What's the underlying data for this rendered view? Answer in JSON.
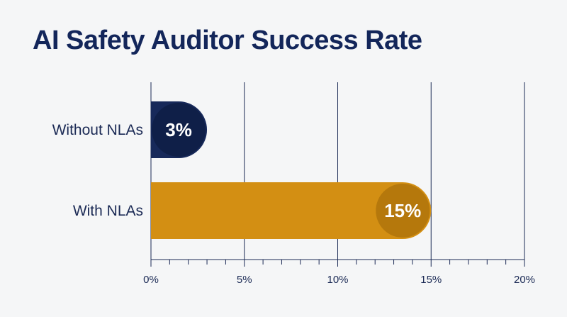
{
  "title": "AI Safety Auditor Success Rate",
  "colors": {
    "background": "#f5f6f7",
    "grid": "#1b2a55",
    "title": "#13265a",
    "without_bar": "#17295a",
    "without_badge": "#0f1f48",
    "with_bar": "#d38f13",
    "with_badge": "#b5780c"
  },
  "chart_data": {
    "type": "bar",
    "orientation": "horizontal",
    "title": "AI Safety Auditor Success Rate",
    "categories": [
      "Without NLAs",
      "With NLAs"
    ],
    "values": [
      3,
      15
    ],
    "data_labels": [
      "3%",
      "15%"
    ],
    "xlim": [
      0,
      20
    ],
    "x_ticks": [
      0,
      5,
      10,
      15,
      20
    ],
    "x_tick_labels": [
      "0%",
      "5%",
      "10%",
      "15%",
      "20%"
    ],
    "minor_ticks_per_major": 5,
    "grid": true,
    "xlabel": "",
    "ylabel": ""
  }
}
